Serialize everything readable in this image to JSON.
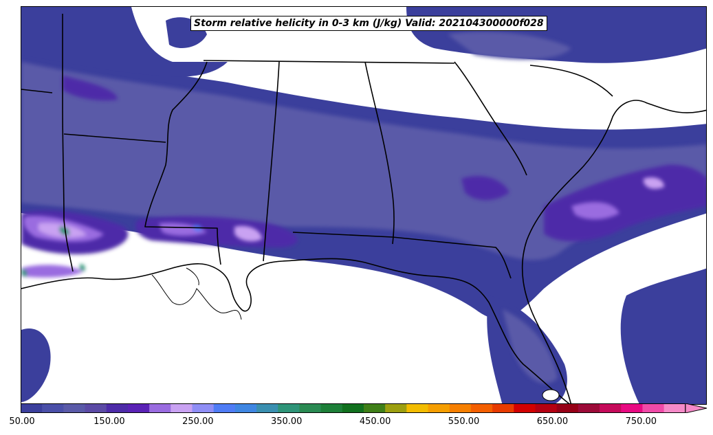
{
  "map": {
    "title": "Storm relative helicity in 0-3 km (J/kg) Valid: 202104300000f028"
  },
  "colorbar": {
    "min": 50,
    "max": 800,
    "step": 25,
    "extend": "max",
    "tick_labels": [
      "50.00",
      "150.00",
      "250.00",
      "350.00",
      "450.00",
      "550.00",
      "650.00",
      "750.00"
    ],
    "tick_values": [
      50,
      150,
      250,
      350,
      450,
      550,
      650,
      750
    ],
    "colors": [
      "#3b3f9c",
      "#4a4fa8",
      "#5a5aa8",
      "#5b4aa5",
      "#4d2ba8",
      "#5a22b5",
      "#9a6ce0",
      "#c9a2f2",
      "#8f8ef5",
      "#4f7cf5",
      "#3f86e2",
      "#3a8fb0",
      "#2e9478",
      "#2a8a52",
      "#1d7f38",
      "#11701e",
      "#3f7f18",
      "#9c9f10",
      "#f2bc00",
      "#f59e00",
      "#f67f00",
      "#f45f00",
      "#e83b00",
      "#d20000",
      "#b40012",
      "#960016",
      "#9c0a38",
      "#c50a5a",
      "#e80a82",
      "#f04aa8",
      "#f58ac8"
    ]
  }
}
